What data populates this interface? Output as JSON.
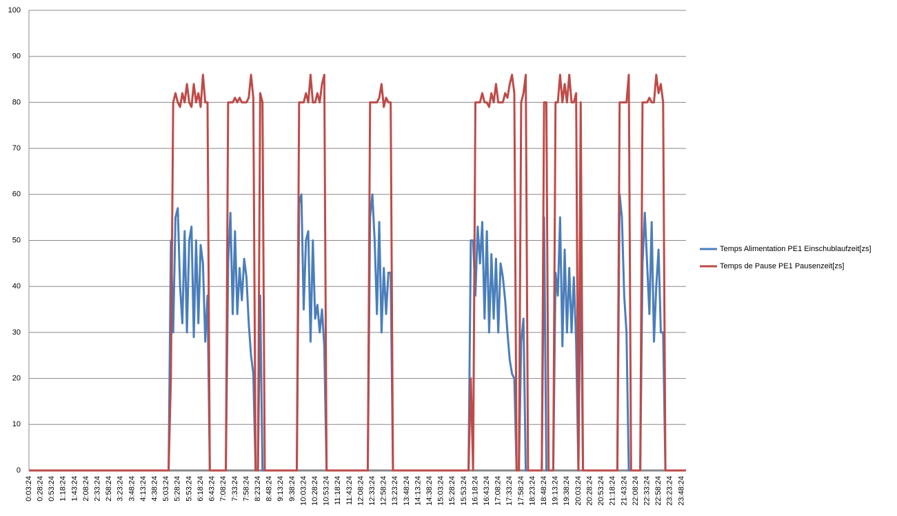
{
  "chart_data": {
    "type": "line",
    "categories": [
      "0:03:24",
      null,
      null,
      null,
      null,
      "0:28:24",
      null,
      null,
      null,
      null,
      "0:53:24",
      null,
      null,
      null,
      null,
      "1:18:24",
      null,
      null,
      null,
      null,
      "1:43:24",
      null,
      null,
      null,
      null,
      "2:08:24",
      null,
      null,
      null,
      null,
      "2:33:24",
      null,
      null,
      null,
      null,
      "2:58:24",
      null,
      null,
      null,
      null,
      "3:23:24",
      null,
      null,
      null,
      null,
      "3:48:24",
      null,
      null,
      null,
      null,
      "4:13:24",
      null,
      null,
      null,
      null,
      "4:38:24",
      null,
      null,
      null,
      null,
      "5:03:24",
      null,
      null,
      null,
      null,
      "5:28:24",
      null,
      null,
      null,
      null,
      "5:53:24",
      null,
      null,
      null,
      null,
      "6:18:24",
      null,
      null,
      null,
      null,
      "6:43:24",
      null,
      null,
      null,
      null,
      "7:08:24",
      null,
      null,
      null,
      null,
      "7:33:24",
      null,
      null,
      null,
      null,
      "7:58:24",
      null,
      null,
      null,
      null,
      "8:23:24",
      null,
      null,
      null,
      null,
      "8:48:24",
      null,
      null,
      null,
      null,
      "9:13:24",
      null,
      null,
      null,
      null,
      "9:38:24",
      null,
      null,
      null,
      null,
      "10:03:24",
      null,
      null,
      null,
      null,
      "10:28:24",
      null,
      null,
      null,
      null,
      "10:53:24",
      null,
      null,
      null,
      null,
      "11:18:24",
      null,
      null,
      null,
      null,
      "11:43:24",
      null,
      null,
      null,
      null,
      "12:08:24",
      null,
      null,
      null,
      null,
      "12:33:24",
      null,
      null,
      null,
      null,
      "12:58:24",
      null,
      null,
      null,
      null,
      "13:23:24",
      null,
      null,
      null,
      null,
      "13:48:24",
      null,
      null,
      null,
      null,
      "14:13:24",
      null,
      null,
      null,
      null,
      "14:38:24",
      null,
      null,
      null,
      null,
      "15:03:24",
      null,
      null,
      null,
      null,
      "15:28:24",
      null,
      null,
      null,
      null,
      "15:53:24",
      null,
      null,
      null,
      null,
      "16:18:24",
      null,
      null,
      null,
      null,
      "16:43:24",
      null,
      null,
      null,
      null,
      "17:08:24",
      null,
      null,
      null,
      null,
      "17:33:24",
      null,
      null,
      null,
      null,
      "17:58:24",
      null,
      null,
      null,
      null,
      "18:23:24",
      null,
      null,
      null,
      null,
      "18:48:24",
      null,
      null,
      null,
      null,
      "19:13:24",
      null,
      null,
      null,
      null,
      "19:38:24",
      null,
      null,
      null,
      null,
      "20:03:24",
      null,
      null,
      null,
      null,
      "20:28:24",
      null,
      null,
      null,
      null,
      "20:53:24",
      null,
      null,
      null,
      null,
      "21:18:24",
      null,
      null,
      null,
      null,
      "21:43:24",
      null,
      null,
      null,
      null,
      "22:08:24",
      null,
      null,
      null,
      null,
      "22:33:24",
      null,
      null,
      null,
      null,
      "22:58:24",
      null,
      null,
      null,
      null,
      "23:23:24",
      null,
      null,
      null,
      null,
      "23:48:24",
      null,
      null
    ],
    "series": [
      {
        "name": "Temps Alimentation PE1 Einschublaufzeit[zs]",
        "color": "#4a7ebb",
        "values": [
          0,
          0,
          0,
          0,
          0,
          0,
          0,
          0,
          0,
          0,
          0,
          0,
          0,
          0,
          0,
          0,
          0,
          0,
          0,
          0,
          0,
          0,
          0,
          0,
          0,
          0,
          0,
          0,
          0,
          0,
          0,
          0,
          0,
          0,
          0,
          0,
          0,
          0,
          0,
          0,
          0,
          0,
          0,
          0,
          0,
          0,
          0,
          0,
          0,
          0,
          0,
          0,
          0,
          0,
          0,
          0,
          0,
          0,
          0,
          0,
          0,
          0,
          50,
          30,
          55,
          57,
          40,
          32,
          52,
          30,
          50,
          53,
          29,
          50,
          32,
          49,
          45,
          28,
          38,
          0,
          0,
          0,
          0,
          0,
          0,
          0,
          0,
          45,
          56,
          34,
          52,
          34,
          44,
          37,
          46,
          42,
          32,
          25,
          21,
          0,
          0,
          38,
          0,
          0,
          0,
          0,
          0,
          0,
          0,
          0,
          0,
          0,
          0,
          0,
          0,
          0,
          0,
          0,
          58,
          60,
          35,
          50,
          52,
          28,
          50,
          33,
          36,
          30,
          35,
          27,
          0,
          0,
          0,
          0,
          0,
          0,
          0,
          0,
          0,
          0,
          0,
          0,
          0,
          0,
          0,
          0,
          0,
          0,
          0,
          55,
          60,
          50,
          34,
          54,
          30,
          44,
          34,
          43,
          43,
          0,
          0,
          0,
          0,
          0,
          0,
          0,
          0,
          0,
          0,
          0,
          0,
          0,
          0,
          0,
          0,
          0,
          0,
          0,
          0,
          0,
          0,
          0,
          0,
          0,
          0,
          0,
          0,
          0,
          0,
          0,
          0,
          0,
          0,
          50,
          50,
          38,
          53,
          45,
          54,
          33,
          52,
          30,
          47,
          33,
          46,
          30,
          45,
          42,
          37,
          30,
          24,
          21,
          20,
          0,
          0,
          28,
          33,
          0,
          0,
          0,
          0,
          0,
          0,
          0,
          0,
          55,
          0,
          0,
          0,
          0,
          43,
          38,
          55,
          27,
          48,
          30,
          44,
          30,
          42,
          28,
          0,
          49,
          0,
          0,
          0,
          0,
          0,
          0,
          0,
          0,
          0,
          0,
          0,
          0,
          0,
          0,
          0,
          0,
          60,
          55,
          38,
          30,
          0,
          0,
          0,
          0,
          0,
          0,
          45,
          56,
          45,
          34,
          54,
          28,
          40,
          48,
          30,
          30,
          0,
          0,
          0,
          0,
          0,
          0,
          0,
          0,
          0,
          0
        ]
      },
      {
        "name": "Temps de Pause PE1 Pausenzeit[zs]",
        "color": "#be4b48",
        "values": [
          0,
          0,
          0,
          0,
          0,
          0,
          0,
          0,
          0,
          0,
          0,
          0,
          0,
          0,
          0,
          0,
          0,
          0,
          0,
          0,
          0,
          0,
          0,
          0,
          0,
          0,
          0,
          0,
          0,
          0,
          0,
          0,
          0,
          0,
          0,
          0,
          0,
          0,
          0,
          0,
          0,
          0,
          0,
          0,
          0,
          0,
          0,
          0,
          0,
          0,
          0,
          0,
          0,
          0,
          0,
          0,
          0,
          0,
          0,
          0,
          0,
          0,
          20,
          80,
          82,
          80,
          79,
          82,
          80,
          84,
          80,
          79,
          84,
          80,
          82,
          79,
          86,
          80,
          80,
          0,
          0,
          0,
          0,
          0,
          0,
          0,
          0,
          80,
          80,
          80,
          81,
          80,
          81,
          80,
          80,
          80,
          81,
          86,
          81,
          0,
          0,
          82,
          80,
          0,
          0,
          0,
          0,
          0,
          0,
          0,
          0,
          0,
          0,
          0,
          0,
          0,
          0,
          0,
          80,
          80,
          80,
          82,
          80,
          86,
          80,
          80,
          82,
          80,
          84,
          86,
          0,
          0,
          0,
          0,
          0,
          0,
          0,
          0,
          0,
          0,
          0,
          0,
          0,
          0,
          0,
          0,
          0,
          0,
          0,
          80,
          80,
          80,
          80,
          81,
          84,
          79,
          81,
          80,
          80,
          0,
          0,
          0,
          0,
          0,
          0,
          0,
          0,
          0,
          0,
          0,
          0,
          0,
          0,
          0,
          0,
          0,
          0,
          0,
          0,
          0,
          0,
          0,
          0,
          0,
          0,
          0,
          0,
          0,
          0,
          0,
          0,
          0,
          0,
          20,
          0,
          80,
          80,
          80,
          82,
          80,
          80,
          79,
          82,
          80,
          84,
          80,
          80,
          80,
          82,
          81,
          84,
          86,
          82,
          0,
          0,
          80,
          82,
          86,
          0,
          0,
          0,
          0,
          0,
          0,
          0,
          80,
          80,
          0,
          0,
          0,
          80,
          80,
          86,
          80,
          84,
          80,
          86,
          80,
          80,
          82,
          0,
          80,
          0,
          0,
          0,
          0,
          0,
          0,
          0,
          0,
          0,
          0,
          0,
          0,
          0,
          0,
          0,
          0,
          80,
          80,
          80,
          80,
          86,
          0,
          0,
          0,
          0,
          0,
          80,
          80,
          80,
          81,
          80,
          80,
          86,
          82,
          84,
          80,
          0,
          0,
          0,
          0,
          0,
          0,
          0,
          0,
          0,
          0
        ]
      }
    ],
    "ylim": [
      0,
      100
    ],
    "yticks": [
      0,
      10,
      20,
      30,
      40,
      50,
      60,
      70,
      80,
      90,
      100
    ],
    "grid": true,
    "legend": "right"
  }
}
